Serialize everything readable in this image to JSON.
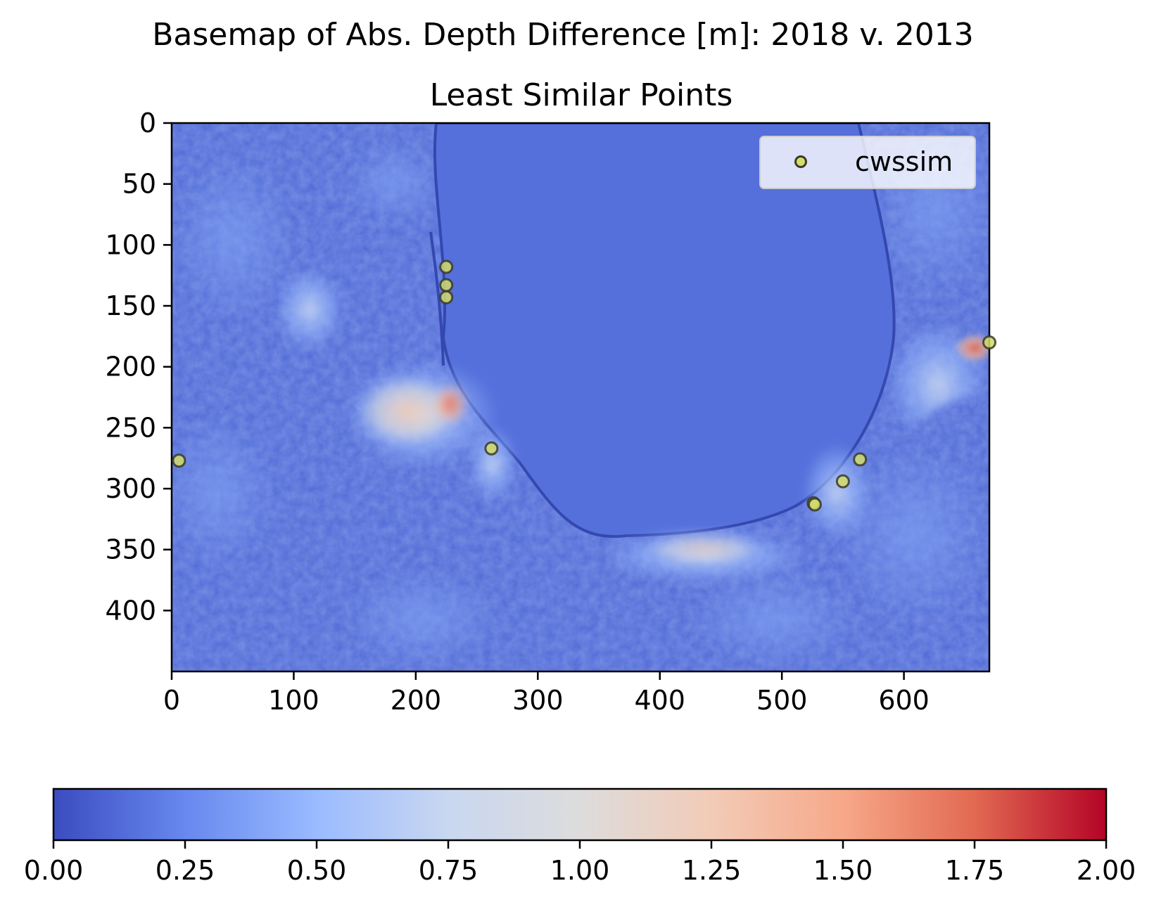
{
  "figure": {
    "suptitle": "Basemap of Abs. Depth Difference [m]: 2018 v. 2013",
    "title": "Least Similar Points"
  },
  "chart_data": {
    "type": "heatmap",
    "image_extent": {
      "x": [
        0,
        670
      ],
      "y": [
        450,
        0
      ]
    },
    "xlim": [
      0,
      670
    ],
    "ylim": [
      450,
      0
    ],
    "y_inverted": true,
    "x_ticks": [
      0,
      100,
      200,
      300,
      400,
      500,
      600
    ],
    "y_ticks": [
      0,
      50,
      100,
      150,
      200,
      250,
      300,
      350,
      400
    ],
    "grid": false,
    "colormap": "coolwarm",
    "colormap_stops": [
      "#3b4cc0",
      "#6788ee",
      "#9abbff",
      "#c9d7f0",
      "#dddcdc",
      "#f2cbb7",
      "#f7a889",
      "#e26952",
      "#b40426"
    ],
    "color_range": [
      0,
      2
    ],
    "colorbar": {
      "orientation": "horizontal",
      "ticks": [
        "0.00",
        "0.25",
        "0.50",
        "0.75",
        "1.00",
        "1.25",
        "1.50",
        "1.75",
        "2.00"
      ]
    },
    "legend": {
      "placement": "upper right",
      "entries": [
        "cwssim"
      ]
    },
    "marker_color": "#d4dc6a",
    "marker_edge": "#3a3a2a",
    "series": [
      {
        "name": "cwssim",
        "points": [
          [
            225,
            118
          ],
          [
            225,
            133
          ],
          [
            225,
            143
          ],
          [
            670,
            180
          ],
          [
            262,
            267
          ],
          [
            6,
            277
          ],
          [
            564,
            276
          ],
          [
            550,
            294
          ],
          [
            526,
            312
          ],
          [
            527,
            313
          ]
        ]
      }
    ]
  }
}
